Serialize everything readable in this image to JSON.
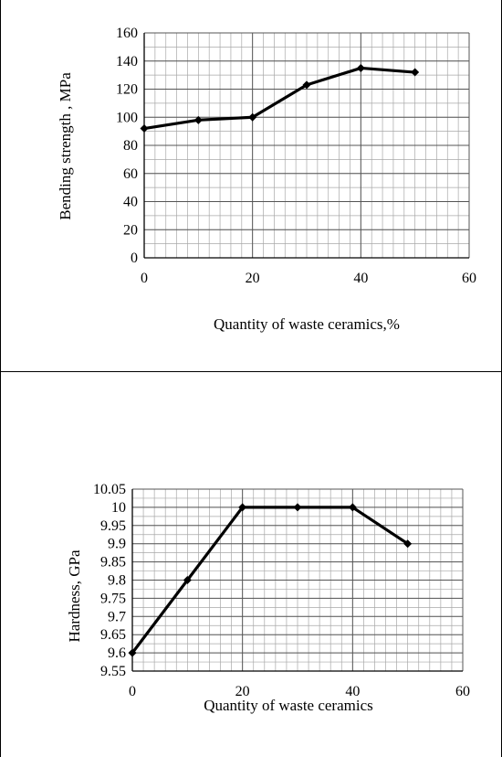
{
  "chart_data": [
    {
      "type": "line",
      "xlabel": "Quantity of  waste ceramics,%",
      "ylabel": "Bending strength , MPa",
      "xlim": [
        0,
        60
      ],
      "ylim": [
        0,
        160
      ],
      "x_ticks": [
        "0",
        "20",
        "40",
        "60"
      ],
      "y_ticks": [
        "0",
        "20",
        "40",
        "60",
        "80",
        "100",
        "120",
        "140",
        "160"
      ],
      "grid": "on",
      "series": [
        {
          "x": [
            0,
            10,
            20,
            30,
            40,
            50
          ],
          "values": [
            92,
            98,
            100,
            123,
            135,
            132
          ],
          "color": "#000000"
        }
      ]
    },
    {
      "type": "line",
      "xlabel": "Quantity of  waste ceramics",
      "ylabel": "Hardness, GPa",
      "xlim": [
        0,
        60
      ],
      "ylim": [
        9.55,
        10.05
      ],
      "x_ticks": [
        "0",
        "20",
        "40",
        "60"
      ],
      "y_ticks": [
        "9.55",
        "9.6",
        "9.65",
        "9.7",
        "9.75",
        "9.8",
        "9.85",
        "9.9",
        "9.95",
        "10",
        "10.05"
      ],
      "grid": "on",
      "series": [
        {
          "x": [
            0,
            10,
            20,
            30,
            40,
            50
          ],
          "values": [
            9.6,
            9.8,
            10.0,
            10.0,
            10.0,
            9.9
          ],
          "color": "#000000"
        }
      ]
    }
  ]
}
